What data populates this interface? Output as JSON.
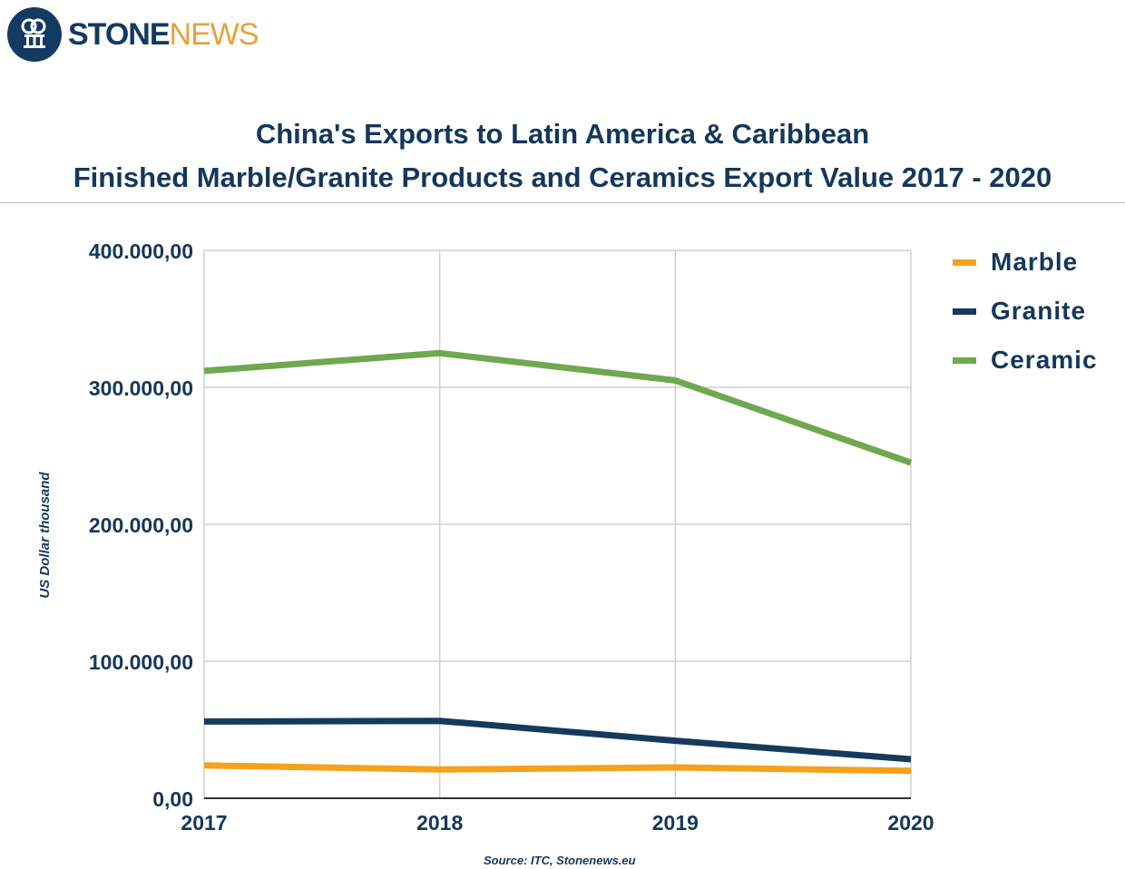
{
  "logo": {
    "part1": "STONE",
    "part2": "NEWS",
    "icon": "stone-pillar-icon"
  },
  "source": "Source: ITC, Stonenews.eu",
  "chart_data": {
    "type": "line",
    "title": "China's Exports to Latin America & Caribbean",
    "subtitle": "Finished Marble/Granite Products and Ceramics Export Value 2017 - 2020",
    "xlabel": "",
    "ylabel": "US Dollar thousand",
    "categories": [
      "2017",
      "2018",
      "2019",
      "2020"
    ],
    "ylim": [
      0,
      400000
    ],
    "yticks": [
      0,
      100000,
      200000,
      300000,
      400000
    ],
    "ytick_labels": [
      "0,00",
      "100.000,00",
      "200.000,00",
      "300.000,00",
      "400.000,00"
    ],
    "grid": true,
    "legend_position": "right",
    "series": [
      {
        "name": "Marble",
        "color": "#f5a11b",
        "values": [
          24000,
          21000,
          22500,
          20000
        ]
      },
      {
        "name": "Granite",
        "color": "#143a5e",
        "values": [
          56000,
          56500,
          42000,
          28500
        ]
      },
      {
        "name": "Ceramic",
        "color": "#6ea84f",
        "values": [
          312000,
          325000,
          305000,
          245000
        ]
      }
    ]
  }
}
